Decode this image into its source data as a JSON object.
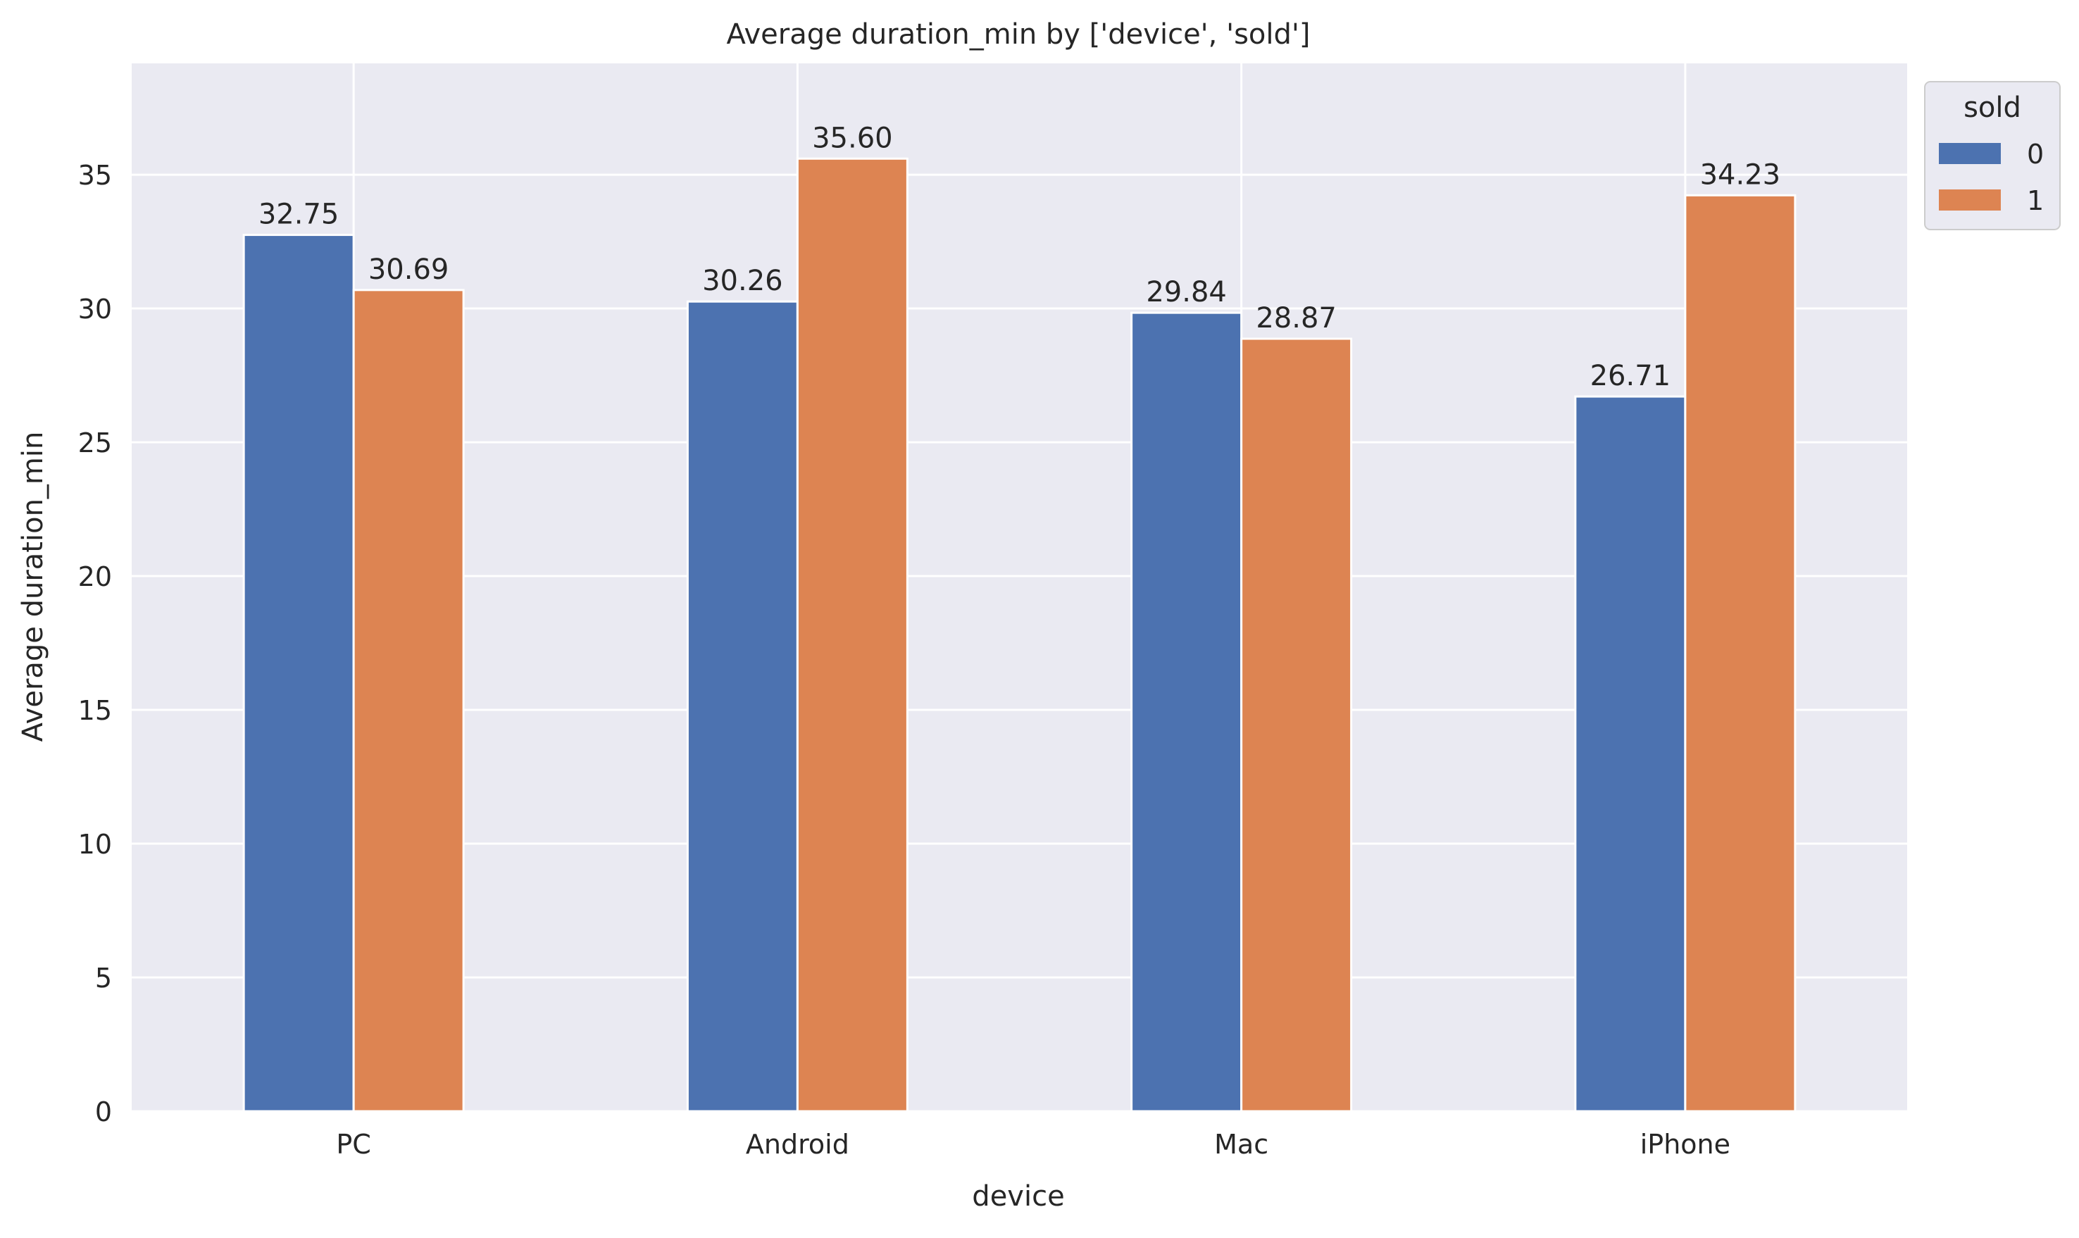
{
  "chart_data": {
    "type": "bar",
    "title": "Average duration_min by ['device', 'sold']",
    "xlabel": "device",
    "ylabel": "Average duration_min",
    "categories": [
      "PC",
      "Android",
      "Mac",
      "iPhone"
    ],
    "series": [
      {
        "name": "0",
        "values": [
          32.75,
          30.26,
          29.84,
          26.71
        ],
        "color": "#4c72b0"
      },
      {
        "name": "1",
        "values": [
          30.69,
          35.6,
          28.87,
          34.23
        ],
        "color": "#dd8452"
      }
    ],
    "data_labels": [
      [
        "32.75",
        "30.26",
        "29.84",
        "26.71"
      ],
      [
        "30.69",
        "35.60",
        "28.87",
        "34.23"
      ]
    ],
    "ylim": [
      0,
      39.16
    ],
    "yticks": [
      0,
      5,
      10,
      15,
      20,
      25,
      30,
      35
    ],
    "grid": true,
    "legend": {
      "title": "sold",
      "placement": "outside-top-right"
    },
    "colors": {
      "background": "#eaeaf2",
      "grid": "#ffffff"
    }
  }
}
